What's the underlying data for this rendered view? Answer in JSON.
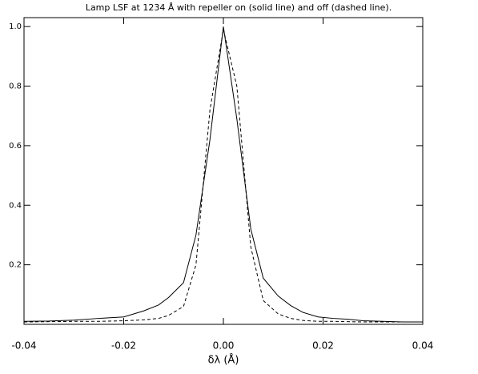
{
  "chart_data": {
    "type": "line",
    "title": "Lamp LSF at 1234 Å with repeller on (solid line) and off (dashed line).",
    "x_label": "δλ (Å)",
    "x": [
      -0.04,
      -0.035,
      -0.03,
      -0.025,
      -0.02,
      -0.016,
      -0.013,
      -0.011,
      -0.008,
      -0.0055,
      -0.0027,
      0,
      0.0027,
      0.0055,
      0.008,
      0.011,
      0.0135,
      0.016,
      0.019,
      0.022,
      0.025,
      0.028,
      0.032,
      0.036,
      0.04
    ],
    "series": [
      {
        "color": "#000000",
        "dash": false,
        "values": [
          0.01,
          0.011,
          0.014,
          0.02,
          0.025,
          0.045,
          0.065,
          0.09,
          0.14,
          0.3,
          0.62,
          1.0,
          0.69,
          0.32,
          0.155,
          0.095,
          0.063,
          0.04,
          0.025,
          0.02,
          0.017,
          0.012,
          0.01,
          0.008,
          0.008
        ]
      },
      {
        "color": "#000000",
        "dash": true,
        "values": [
          0.008,
          0.009,
          0.01,
          0.01,
          0.012,
          0.015,
          0.02,
          0.03,
          0.06,
          0.2,
          0.72,
          0.99,
          0.8,
          0.26,
          0.08,
          0.035,
          0.02,
          0.013,
          0.01,
          0.01,
          0.009,
          0.008,
          0.008,
          0.008,
          0.008
        ]
      }
    ],
    "xlim": [
      -0.04,
      0.04
    ],
    "xticks": [
      -0.04,
      -0.02,
      {
        "value": 0,
        "label": "0.00"
      },
      0.02,
      0.04
    ],
    "ylim": [
      0,
      1.03
    ],
    "yticks": [
      0.2,
      0.4,
      0.6,
      0.8,
      {
        "value": 1,
        "label": "1.0"
      }
    ],
    "grid": false
  }
}
